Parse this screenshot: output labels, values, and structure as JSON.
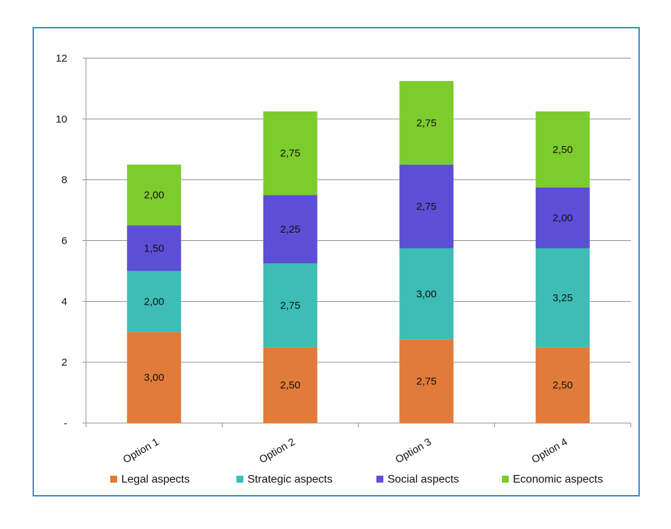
{
  "chart_data": {
    "type": "bar",
    "stacked": true,
    "categories": [
      "Option 1",
      "Option 2",
      "Option 3",
      "Option 4"
    ],
    "series": [
      {
        "name": "Legal aspects",
        "color": "#e07b39",
        "values": [
          3.0,
          2.5,
          2.75,
          2.5
        ],
        "labels": [
          "3,00",
          "2,50",
          "2,75",
          "2,50"
        ]
      },
      {
        "name": "Strategic aspects",
        "color": "#3dbdb6",
        "values": [
          2.0,
          2.75,
          3.0,
          3.25
        ],
        "labels": [
          "2,00",
          "2,75",
          "3,00",
          "3,25"
        ]
      },
      {
        "name": "Social aspects",
        "color": "#5b4fd6",
        "values": [
          1.5,
          2.25,
          2.75,
          2.0
        ],
        "labels": [
          "1,50",
          "2,25",
          "2,75",
          "2,00"
        ]
      },
      {
        "name": "Economic aspects",
        "color": "#7dcc2d",
        "values": [
          2.0,
          2.75,
          2.75,
          2.5
        ],
        "labels": [
          "2,00",
          "2,75",
          "2,75",
          "2,50"
        ]
      }
    ],
    "yticks": [
      0,
      2,
      4,
      6,
      8,
      10,
      12
    ],
    "ytick_labels": [
      "-",
      "2",
      "4",
      "6",
      "8",
      "10",
      "12"
    ],
    "ylim": [
      0,
      12
    ],
    "grid": true,
    "legend_position": "bottom"
  }
}
